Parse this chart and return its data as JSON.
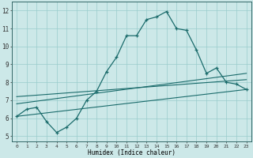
{
  "xlabel": "Humidex (Indice chaleur)",
  "background_color": "#cce8e8",
  "grid_color": "#99cccc",
  "line_color": "#1a6b6b",
  "xlim": [
    -0.5,
    23.5
  ],
  "ylim": [
    4.7,
    12.5
  ],
  "xticks": [
    0,
    1,
    2,
    3,
    4,
    5,
    6,
    7,
    8,
    9,
    10,
    11,
    12,
    13,
    14,
    15,
    16,
    17,
    18,
    19,
    20,
    21,
    22,
    23
  ],
  "yticks": [
    5,
    6,
    7,
    8,
    9,
    10,
    11,
    12
  ],
  "main_x": [
    0,
    1,
    2,
    3,
    4,
    5,
    6,
    7,
    8,
    9,
    10,
    11,
    12,
    13,
    14,
    15,
    16,
    17,
    18,
    19,
    20,
    21,
    22,
    23
  ],
  "main_y": [
    6.1,
    6.5,
    6.6,
    5.8,
    5.2,
    5.5,
    6.0,
    7.0,
    7.5,
    8.6,
    9.4,
    10.6,
    10.6,
    11.5,
    11.65,
    11.95,
    11.0,
    10.9,
    9.8,
    8.5,
    8.8,
    8.0,
    7.9,
    7.6
  ],
  "line2_x": [
    0,
    23
  ],
  "line2_y": [
    6.1,
    7.6
  ],
  "line3_x": [
    0,
    23
  ],
  "line3_y": [
    6.8,
    8.5
  ],
  "line4_x": [
    0,
    23
  ],
  "line4_y": [
    7.2,
    8.15
  ]
}
